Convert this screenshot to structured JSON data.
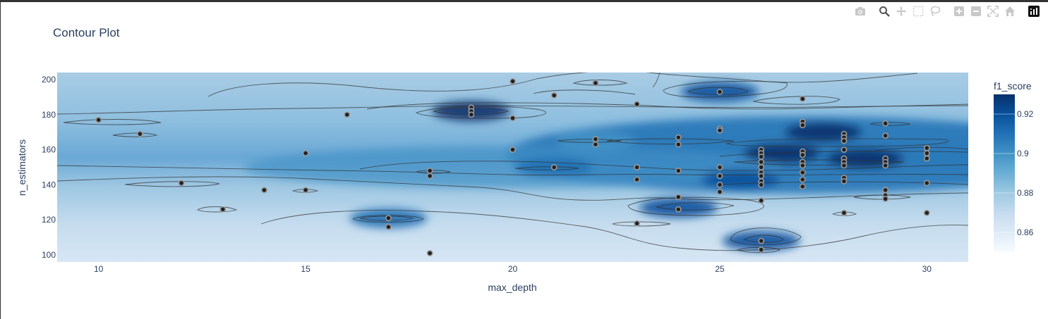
{
  "chart_data": {
    "type": "contour",
    "title": "Contour Plot",
    "xlabel": "max_depth",
    "ylabel": "n_estimators",
    "xlim": [
      9,
      31
    ],
    "ylim": [
      96,
      204
    ],
    "xticks": [
      10,
      15,
      20,
      25,
      30
    ],
    "yticks": [
      100,
      120,
      140,
      160,
      180,
      200
    ],
    "colorbar": {
      "title": "f1_score",
      "range": [
        0.85,
        0.93
      ],
      "ticks": [
        0.86,
        0.88,
        0.9,
        0.92
      ],
      "colors": [
        "#f7fbff",
        "#deebf7",
        "#c6dbef",
        "#9ecae1",
        "#6baed6",
        "#4292c6",
        "#2171b5",
        "#08519c",
        "#08306b"
      ]
    },
    "points": [
      [
        10,
        177
      ],
      [
        11,
        169
      ],
      [
        12,
        141
      ],
      [
        13,
        126
      ],
      [
        14,
        137
      ],
      [
        15,
        137
      ],
      [
        15,
        158
      ],
      [
        16,
        180
      ],
      [
        17,
        121
      ],
      [
        17,
        116
      ],
      [
        18,
        148
      ],
      [
        18,
        145
      ],
      [
        18,
        101
      ],
      [
        19,
        184
      ],
      [
        19,
        182
      ],
      [
        19,
        180
      ],
      [
        20,
        199
      ],
      [
        20,
        178
      ],
      [
        20,
        160
      ],
      [
        21,
        191
      ],
      [
        21,
        150
      ],
      [
        22,
        198
      ],
      [
        22,
        166
      ],
      [
        22,
        163
      ],
      [
        23,
        186
      ],
      [
        23,
        150
      ],
      [
        23,
        143
      ],
      [
        23,
        118
      ],
      [
        24,
        167
      ],
      [
        24,
        163
      ],
      [
        24,
        148
      ],
      [
        24,
        133
      ],
      [
        24,
        126
      ],
      [
        25,
        193
      ],
      [
        25,
        172
      ],
      [
        25,
        171
      ],
      [
        25,
        150
      ],
      [
        25,
        145
      ],
      [
        25,
        140
      ],
      [
        25,
        136
      ],
      [
        26,
        160
      ],
      [
        26,
        158
      ],
      [
        26,
        156
      ],
      [
        26,
        153
      ],
      [
        26,
        150
      ],
      [
        26,
        147
      ],
      [
        26,
        145
      ],
      [
        26,
        142
      ],
      [
        26,
        140
      ],
      [
        26,
        131
      ],
      [
        26,
        108
      ],
      [
        26,
        103
      ],
      [
        27,
        189
      ],
      [
        27,
        176
      ],
      [
        27,
        174
      ],
      [
        27,
        159
      ],
      [
        27,
        157
      ],
      [
        27,
        153
      ],
      [
        27,
        151
      ],
      [
        27,
        147
      ],
      [
        27,
        143
      ],
      [
        27,
        139
      ],
      [
        28,
        169
      ],
      [
        28,
        167
      ],
      [
        28,
        165
      ],
      [
        28,
        160
      ],
      [
        28,
        155
      ],
      [
        28,
        153
      ],
      [
        28,
        151
      ],
      [
        28,
        144
      ],
      [
        28,
        142
      ],
      [
        28,
        124
      ],
      [
        29,
        175
      ],
      [
        29,
        168
      ],
      [
        29,
        155
      ],
      [
        29,
        153
      ],
      [
        29,
        151
      ],
      [
        29,
        137
      ],
      [
        29,
        134
      ],
      [
        29,
        132
      ],
      [
        30,
        161
      ],
      [
        30,
        158
      ],
      [
        30,
        155
      ],
      [
        30,
        141
      ],
      [
        30,
        124
      ]
    ],
    "hotspots": [
      {
        "x": 19,
        "y": 182,
        "value": 0.925
      },
      {
        "x": 25,
        "y": 193,
        "value": 0.92
      },
      {
        "x": 26,
        "y": 108,
        "value": 0.92
      },
      {
        "x": 24,
        "y": 127,
        "value": 0.915
      },
      {
        "x": 26.5,
        "y": 158,
        "value": 0.93
      },
      {
        "x": 28.5,
        "y": 155,
        "value": 0.93
      },
      {
        "x": 27.5,
        "y": 170,
        "value": 0.925
      },
      {
        "x": 25.5,
        "y": 143,
        "value": 0.915
      },
      {
        "x": 21,
        "y": 150,
        "value": 0.91
      },
      {
        "x": 17,
        "y": 121,
        "value": 0.905
      },
      {
        "x": 22,
        "y": 165,
        "value": 0.9
      }
    ]
  },
  "modebar": {
    "icons": [
      "camera-icon",
      "zoom-icon",
      "pan-icon",
      "box-select-icon",
      "lasso-icon",
      "zoom-in-icon",
      "zoom-out-icon",
      "autoscale-icon",
      "reset-axes-icon",
      "plotly-logo"
    ]
  }
}
